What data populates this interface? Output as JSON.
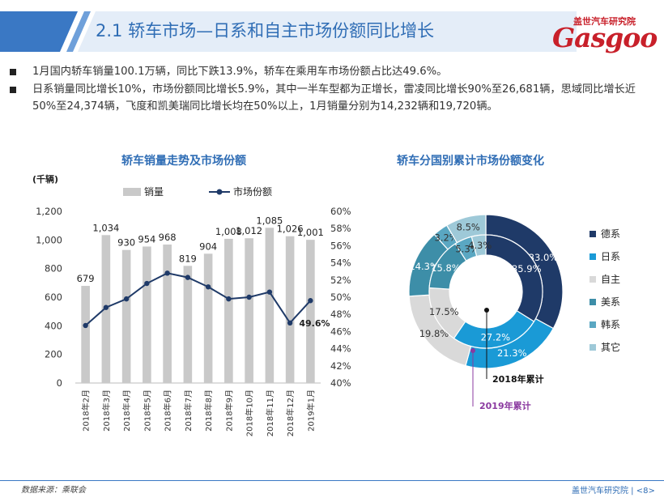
{
  "header": {
    "title": "2.1 轿车市场—日系和自主市场份额同比增长",
    "logo_cn": "盖世汽车研究院",
    "logo_en": "Gasgoo"
  },
  "bullets": [
    "1月国内轿车销量100.1万辆，同比下跌13.9%，轿车在乘用车市场份额占比达49.6%。",
    "日系销量同比增长10%，市场份额同比增长5.9%，其中一半车型都为正增长，雷凌同比增长90%至26,681辆，思域同比增长近50%至24,374辆，飞度和凯美瑞同比增长均在50%以上，1月销量分别为14,232辆和19,720辆。"
  ],
  "colors": {
    "accent": "#2f6db5",
    "bar": "#c9c9c9",
    "line": "#1f3a68",
    "brand_red": "#c8202a"
  },
  "chart_data": [
    {
      "type": "bar",
      "title": "轿车销量走势及市场份额",
      "unit_label": "(千辆)",
      "categories": [
        "2018年2月",
        "2018年3月",
        "2018年4月",
        "2018年5月",
        "2018年6月",
        "2018年7月",
        "2018年8月",
        "2018年9月",
        "2018年10月",
        "2018年11月",
        "2018年12月",
        "2019年1月"
      ],
      "series": [
        {
          "name": "销量",
          "type": "bar",
          "axis": "left",
          "values": [
            679,
            1034,
            930,
            954,
            968,
            819,
            904,
            1008,
            1012,
            1085,
            1026,
            1001
          ]
        },
        {
          "name": "市场份额",
          "type": "line",
          "axis": "right",
          "values": [
            46.7,
            48.8,
            49.8,
            51.6,
            52.8,
            52.3,
            51.2,
            49.8,
            50.0,
            50.6,
            47.0,
            49.6
          ]
        }
      ],
      "bar_labels": [
        "679",
        "1,034",
        "930",
        "954",
        "968",
        "819",
        "904",
        "1,008",
        "1,012",
        "1,085",
        "1,026",
        "1,001"
      ],
      "line_label": {
        "index": 11,
        "text": "49.6%"
      },
      "ylim_left": [
        0,
        1200
      ],
      "yticks_left": [
        "0",
        "200",
        "400",
        "600",
        "800",
        "1,000",
        "1,200"
      ],
      "ylim_right": [
        40,
        60
      ],
      "yticks_right": [
        "40%",
        "42%",
        "44%",
        "46%",
        "48%",
        "50%",
        "52%",
        "54%",
        "56%",
        "58%",
        "60%"
      ],
      "legend": "top"
    },
    {
      "type": "pie",
      "subtype": "double-donut",
      "title": "轿车分国别累计市场份额变化",
      "categories": [
        "德系",
        "日系",
        "自主",
        "美系",
        "韩系",
        "其它"
      ],
      "colors": [
        "#1f3a68",
        "#1a9ad6",
        "#d9d9d9",
        "#3d8ea8",
        "#5aa7c2",
        "#9ec9d8"
      ],
      "outer": {
        "name": "2018年累计",
        "values": [
          33.0,
          21.3,
          19.8,
          14.3,
          3.2,
          8.5
        ],
        "labels": [
          "33.0%",
          "21.3%",
          "19.8%",
          "14.3%",
          "3.2%",
          "8.5%"
        ]
      },
      "inner": {
        "name": "2019年累计",
        "values": [
          35.9,
          27.2,
          17.5,
          15.8,
          5.3,
          4.3
        ],
        "labels": [
          "35.9%",
          "27.2%",
          "17.5%",
          "15.8%",
          "5.3%",
          "4.3%"
        ]
      },
      "legend": "right"
    }
  ],
  "footer": {
    "source": "数据来源：乘联会",
    "page": "盖世汽车研究院 | <8>"
  },
  "watermark": "盖世汽车 Gasgoo"
}
